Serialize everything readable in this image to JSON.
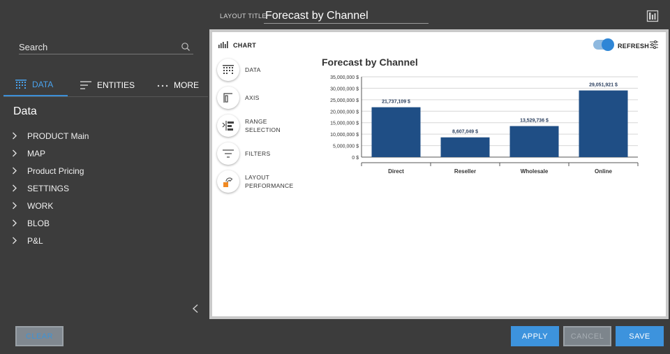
{
  "header": {
    "layout_title_label": "LAYOUT TITLE",
    "layout_title_value": "Forecast by Channel"
  },
  "sidebar": {
    "search_placeholder": "Search",
    "tabs": [
      {
        "label": "DATA",
        "icon": "data-grid-icon",
        "active": true
      },
      {
        "label": "ENTITIES",
        "icon": "lines-icon",
        "active": false
      },
      {
        "label": "MORE",
        "icon": "ellipsis-icon",
        "active": false
      }
    ],
    "section_title": "Data",
    "items": [
      {
        "label": "PRODUCT Main"
      },
      {
        "label": "MAP"
      },
      {
        "label": "Product Pricing"
      },
      {
        "label": "SETTINGS"
      },
      {
        "label": "WORK"
      },
      {
        "label": "BLOB"
      },
      {
        "label": "P&L"
      }
    ]
  },
  "panel": {
    "chart_label": "CHART",
    "refresh_label": "REFRESH",
    "refresh_on": true,
    "menu": [
      {
        "label": "DATA",
        "icon": "data-grid-icon"
      },
      {
        "label": "AXIS",
        "icon": "axis-icon"
      },
      {
        "label": "RANGE\nSELECTION",
        "icon": "range-selection-icon"
      },
      {
        "label": "FILTERS",
        "icon": "filter-icon"
      },
      {
        "label": "LAYOUT\nPERFORMANCE",
        "icon": "performance-icon"
      }
    ]
  },
  "buttons": {
    "clear": "CLEAR",
    "apply": "APPLY",
    "cancel": "CANCEL",
    "save": "SAVE"
  },
  "colors": {
    "accent": "#3d93dd",
    "bar": "#1f4e85",
    "background": "#3c3c3c"
  },
  "chart_data": {
    "type": "bar",
    "title": "Forecast by Channel",
    "categories": [
      "Direct",
      "Reseller",
      "Wholesale",
      "Online"
    ],
    "values": [
      21737109,
      8607049,
      13529736,
      29051921
    ],
    "value_labels": [
      "21,737,109 $",
      "8,607,049 $",
      "13,529,736 $",
      "29,051,921 $"
    ],
    "ylim": [
      0,
      35000000
    ],
    "yticks": [
      "0 $",
      "5,000,000 $",
      "10,000,000 $",
      "15,000,000 $",
      "20,000,000 $",
      "25,000,000 $",
      "30,000,000 $",
      "35,000,000 $"
    ],
    "ytick_values": [
      0,
      5000000,
      10000000,
      15000000,
      20000000,
      25000000,
      30000000,
      35000000
    ],
    "xlabel": "",
    "ylabel": "",
    "grid": true
  }
}
